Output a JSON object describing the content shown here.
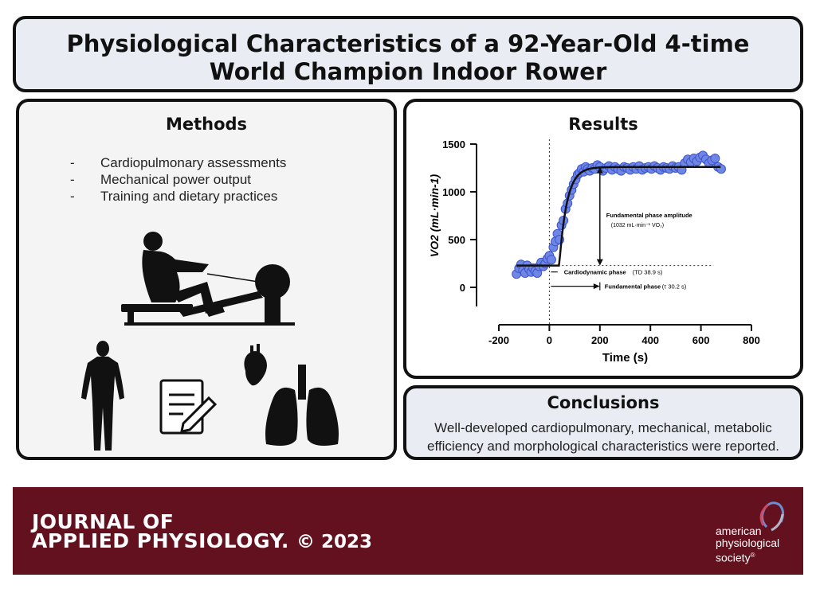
{
  "title": {
    "line1": "Physiological Characteristics of a 92-Year-Old 4-time",
    "line2": "World Champion Indoor Rower"
  },
  "methods": {
    "heading": "Methods",
    "items": [
      {
        "dash": "-",
        "text": "Cardiopulmonary assessments"
      },
      {
        "dash": "-",
        "text": "Mechanical power output"
      },
      {
        "dash": "-",
        "text": "Training and dietary practices"
      }
    ],
    "icons": [
      "rowing-machine-icon",
      "human-body-icon",
      "document-pen-icon",
      "heart-icon",
      "lungs-icon"
    ]
  },
  "results": {
    "heading": "Results"
  },
  "chart_data": {
    "type": "scatter",
    "xlabel": "Time (s)",
    "ylabel": "VO2 (mL·min-1)",
    "xlim": [
      -200,
      800
    ],
    "ylim": [
      0,
      1500
    ],
    "x_ticks": [
      "-200",
      "0",
      "200",
      "400",
      "600",
      "800"
    ],
    "y_ticks": [
      "0",
      "500",
      "1000",
      "1500"
    ],
    "marker_color": "#6f86e6",
    "series": [
      {
        "values": [
          {
            "x": -130,
            "y": 140
          },
          {
            "x": -120,
            "y": 200
          },
          {
            "x": -112,
            "y": 240
          },
          {
            "x": -104,
            "y": 180
          },
          {
            "x": -96,
            "y": 150
          },
          {
            "x": -88,
            "y": 230
          },
          {
            "x": -80,
            "y": 190
          },
          {
            "x": -72,
            "y": 160
          },
          {
            "x": -64,
            "y": 200
          },
          {
            "x": -56,
            "y": 170
          },
          {
            "x": -48,
            "y": 150
          },
          {
            "x": -40,
            "y": 220
          },
          {
            "x": -32,
            "y": 260
          },
          {
            "x": -24,
            "y": 220
          },
          {
            "x": -16,
            "y": 250
          },
          {
            "x": -8,
            "y": 300
          },
          {
            "x": 0,
            "y": 330
          },
          {
            "x": 8,
            "y": 290
          },
          {
            "x": 16,
            "y": 420
          },
          {
            "x": 24,
            "y": 480
          },
          {
            "x": 32,
            "y": 560
          },
          {
            "x": 40,
            "y": 500
          },
          {
            "x": 48,
            "y": 650
          },
          {
            "x": 56,
            "y": 700
          },
          {
            "x": 64,
            "y": 820
          },
          {
            "x": 72,
            "y": 880
          },
          {
            "x": 80,
            "y": 960
          },
          {
            "x": 88,
            "y": 1020
          },
          {
            "x": 96,
            "y": 1080
          },
          {
            "x": 104,
            "y": 1130
          },
          {
            "x": 112,
            "y": 1180
          },
          {
            "x": 120,
            "y": 1200
          },
          {
            "x": 128,
            "y": 1240
          },
          {
            "x": 136,
            "y": 1210
          },
          {
            "x": 144,
            "y": 1260
          },
          {
            "x": 152,
            "y": 1240
          },
          {
            "x": 160,
            "y": 1220
          },
          {
            "x": 170,
            "y": 1250
          },
          {
            "x": 180,
            "y": 1240
          },
          {
            "x": 190,
            "y": 1280
          },
          {
            "x": 200,
            "y": 1260
          },
          {
            "x": 212,
            "y": 1220
          },
          {
            "x": 224,
            "y": 1250
          },
          {
            "x": 236,
            "y": 1270
          },
          {
            "x": 248,
            "y": 1230
          },
          {
            "x": 260,
            "y": 1260
          },
          {
            "x": 272,
            "y": 1240
          },
          {
            "x": 284,
            "y": 1220
          },
          {
            "x": 296,
            "y": 1260
          },
          {
            "x": 308,
            "y": 1250
          },
          {
            "x": 320,
            "y": 1230
          },
          {
            "x": 332,
            "y": 1260
          },
          {
            "x": 344,
            "y": 1240
          },
          {
            "x": 356,
            "y": 1270
          },
          {
            "x": 368,
            "y": 1230
          },
          {
            "x": 380,
            "y": 1250
          },
          {
            "x": 392,
            "y": 1260
          },
          {
            "x": 404,
            "y": 1240
          },
          {
            "x": 416,
            "y": 1270
          },
          {
            "x": 428,
            "y": 1250
          },
          {
            "x": 440,
            "y": 1230
          },
          {
            "x": 452,
            "y": 1260
          },
          {
            "x": 464,
            "y": 1250
          },
          {
            "x": 476,
            "y": 1240
          },
          {
            "x": 488,
            "y": 1270
          },
          {
            "x": 500,
            "y": 1250
          },
          {
            "x": 512,
            "y": 1260
          },
          {
            "x": 524,
            "y": 1230
          },
          {
            "x": 536,
            "y": 1300
          },
          {
            "x": 548,
            "y": 1340
          },
          {
            "x": 560,
            "y": 1310
          },
          {
            "x": 572,
            "y": 1350
          },
          {
            "x": 584,
            "y": 1320
          },
          {
            "x": 596,
            "y": 1360
          },
          {
            "x": 608,
            "y": 1380
          },
          {
            "x": 620,
            "y": 1340
          },
          {
            "x": 632,
            "y": 1300
          },
          {
            "x": 644,
            "y": 1330
          },
          {
            "x": 656,
            "y": 1350
          },
          {
            "x": 668,
            "y": 1260
          },
          {
            "x": 680,
            "y": 1240
          }
        ]
      }
    ],
    "fit_curve": {
      "baseline": 228,
      "amplitude": 1032,
      "time_delay_s": 38.9,
      "tau_s": 30.2,
      "x_start": -130,
      "x_end": 680
    },
    "annotations": {
      "amplitude_label": "Fundamental phase amplitude",
      "amplitude_sublabel": "(1032  mL·min⁻¹ VO₂)",
      "cardiodynamic_label": "Cardiodynamic phase",
      "cardiodynamic_value": "(TD 38.9 s)",
      "fundamental_label": "Fundamental phase",
      "fundamental_value": "(τ  30.2 s)"
    },
    "grid": false
  },
  "conclusions": {
    "heading": "Conclusions",
    "line1": "Well-developed cardiopulmonary, mechanical, metabolic",
    "line2": "efficiency and morphological characteristics were reported."
  },
  "footer": {
    "journal_line1": "JOURNAL OF",
    "journal_line2": "APPLIED PHYSIOLOGY.",
    "copyright": "© 2023",
    "society_line1": "american",
    "society_line2": "physiological",
    "society_line3": "society",
    "society_mark": "®",
    "background_color": "#63111f"
  }
}
